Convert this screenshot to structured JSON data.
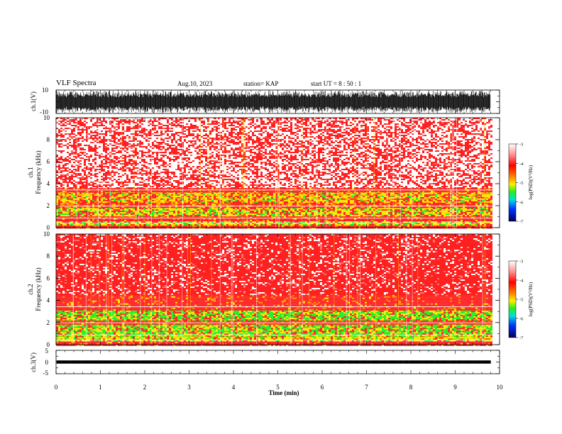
{
  "header": {
    "title": "VLF Spectra",
    "date": "Aug.10, 2023",
    "station": "station= KAP",
    "start_ut": "start  UT =   8 : 50 : 1"
  },
  "chart_data": [
    {
      "type": "line",
      "panel": "ch1-waveform",
      "ylabel": "ch.1(V)",
      "yticks": [
        "10",
        "-10"
      ],
      "ylim": [
        -10,
        10
      ],
      "xlim": [
        0,
        10
      ],
      "data_end_min": 9.8,
      "description_of_trace": "dense noisy waveform filling most of range",
      "color": "#000000"
    },
    {
      "type": "heatmap",
      "panel": "ch1-spectrogram",
      "ylabel_line1": "ch.1",
      "ylabel_line2": "Frequency (kHz)",
      "ylim": [
        0,
        10
      ],
      "yticks": [
        "0",
        "2",
        "4",
        "6",
        "8",
        "10"
      ],
      "xlim": [
        0,
        10
      ],
      "bands_khz": [
        {
          "from": 0.0,
          "to": 0.3,
          "level": "red"
        },
        {
          "from": 0.3,
          "to": 0.7,
          "level": "yellow-green"
        },
        {
          "from": 0.7,
          "to": 1.1,
          "level": "red"
        },
        {
          "from": 1.1,
          "to": 1.8,
          "level": "yellow-green"
        },
        {
          "from": 1.8,
          "to": 2.3,
          "level": "red-yellow"
        },
        {
          "from": 2.3,
          "to": 3.3,
          "level": "yellow-orange"
        },
        {
          "from": 3.3,
          "to": 3.6,
          "level": "red"
        },
        {
          "from": 3.6,
          "to": 10.0,
          "level": "sparse-red"
        }
      ],
      "colorbar": {
        "label": "log(PSD)(V²/Hz)",
        "ticks": [
          "-3",
          "-4",
          "-5",
          "-6",
          "-7"
        ],
        "range": [
          -7,
          -3
        ]
      }
    },
    {
      "type": "heatmap",
      "panel": "ch2-spectrogram",
      "ylabel_line1": "ch.2",
      "ylabel_line2": "Frequency (kHz)",
      "ylim": [
        0,
        10
      ],
      "yticks": [
        "0",
        "2",
        "4",
        "6",
        "8",
        "10"
      ],
      "xlim": [
        0,
        10
      ],
      "bands_khz": [
        {
          "from": 0.0,
          "to": 0.4,
          "level": "red"
        },
        {
          "from": 0.4,
          "to": 0.8,
          "level": "yellow"
        },
        {
          "from": 0.8,
          "to": 1.9,
          "level": "green-yellow"
        },
        {
          "from": 1.9,
          "to": 2.2,
          "level": "red"
        },
        {
          "from": 2.2,
          "to": 3.2,
          "level": "green-yellow"
        },
        {
          "from": 3.2,
          "to": 4.5,
          "level": "red"
        },
        {
          "from": 4.5,
          "to": 10.0,
          "level": "red-dense"
        }
      ],
      "colorbar": {
        "label": "log(PSD)(V²/Hz)",
        "ticks": [
          "-3",
          "-4",
          "-5",
          "-6",
          "-7"
        ],
        "range": [
          -7,
          -3
        ]
      }
    },
    {
      "type": "line",
      "panel": "ch3-waveform",
      "ylabel": "ch.3(V)",
      "yticks": [
        "5",
        "0",
        "-5"
      ],
      "ylim": [
        -5,
        5
      ],
      "xlim": [
        0,
        10
      ],
      "data_end_min": 9.8,
      "trace_center_v": 0,
      "trace_halfwidth_v": 0.6,
      "color": "#000000"
    }
  ],
  "xaxis": {
    "label": "Time (min)",
    "ticks": [
      "0",
      "1",
      "2",
      "3",
      "4",
      "5",
      "6",
      "7",
      "8",
      "9",
      "10"
    ],
    "range": [
      0,
      10
    ]
  },
  "colors": {
    "red": "#ff2020",
    "yellow": "#ffe600",
    "green": "#22ee22",
    "cyan": "#00e0e0",
    "blue": "#0033ff",
    "navy": "#000070"
  }
}
